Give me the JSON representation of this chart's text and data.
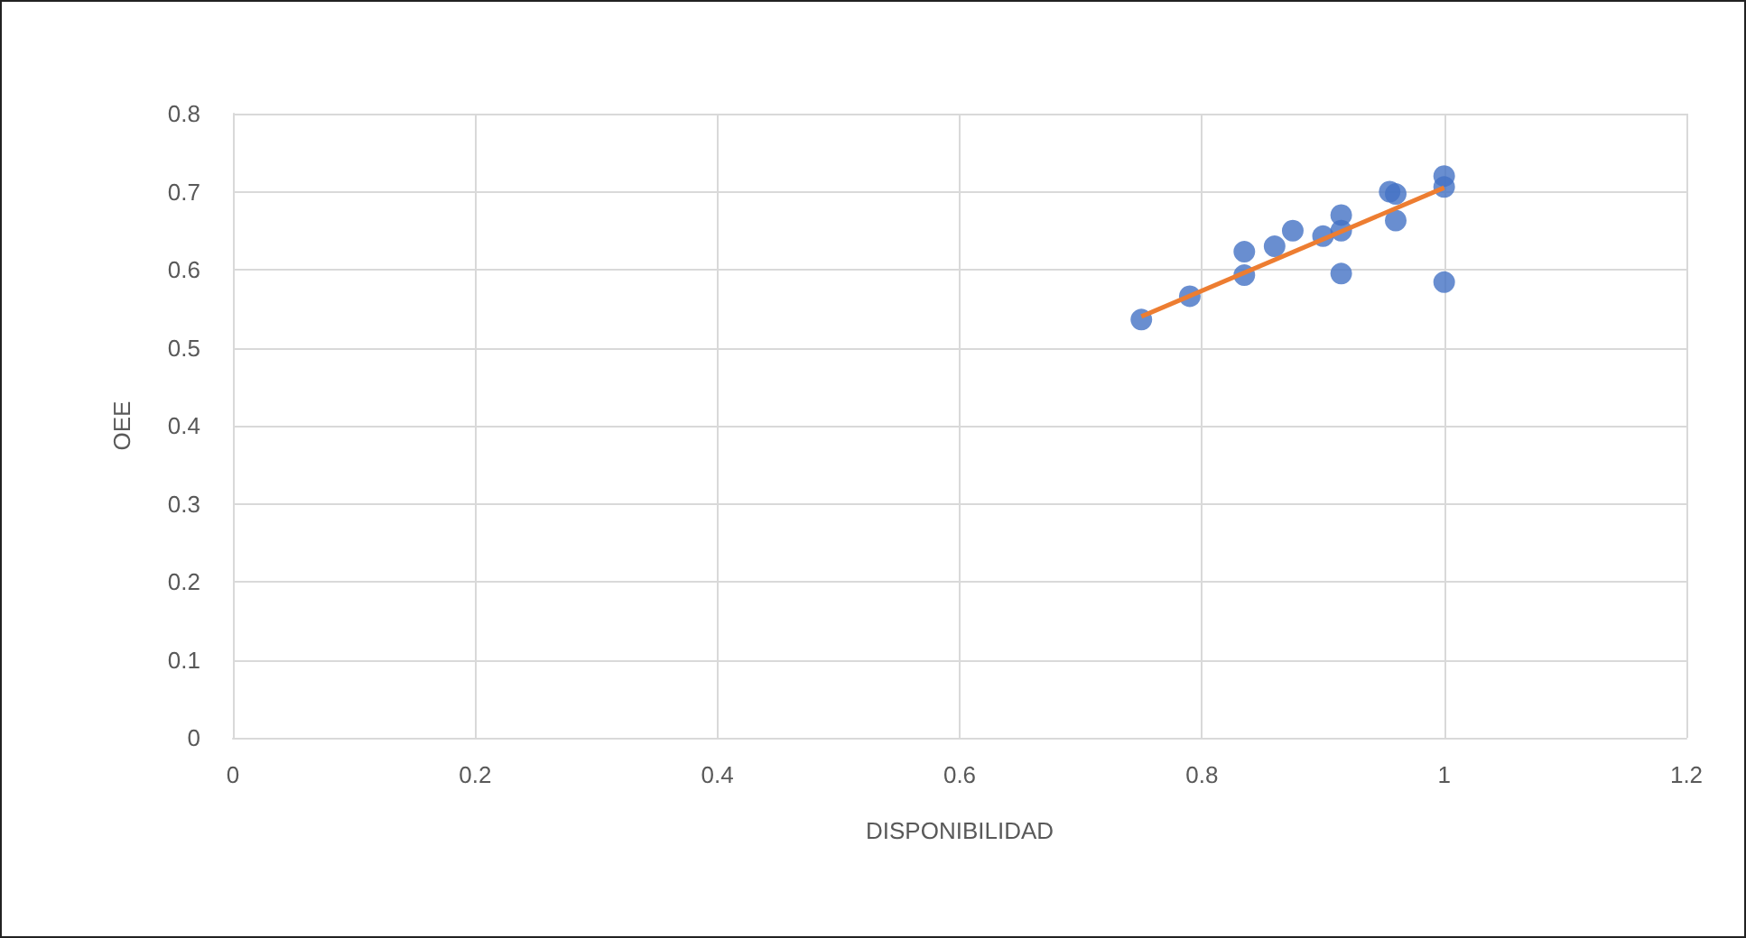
{
  "chart_data": {
    "type": "scatter",
    "xlabel": "DISPONIBILIDAD",
    "ylabel": "OEE",
    "xlim": [
      0,
      1.2
    ],
    "xticks": [
      0,
      0.2,
      0.4,
      0.6,
      0.8,
      1,
      1.2
    ],
    "ylim": [
      0,
      0.8
    ],
    "yticks": [
      0,
      0.1,
      0.2,
      0.3,
      0.4,
      0.5,
      0.6,
      0.7,
      0.8
    ],
    "grid": true,
    "marker": "circle",
    "series": [
      {
        "color": "#4472c4",
        "x": [
          0.75,
          0.79,
          0.835,
          0.835,
          0.86,
          0.875,
          0.9,
          0.915,
          0.915,
          0.915,
          0.955,
          0.96,
          0.96,
          1.0,
          1.0,
          1.0
        ],
        "values": [
          0.536,
          0.566,
          0.623,
          0.593,
          0.63,
          0.65,
          0.643,
          0.67,
          0.65,
          0.595,
          0.7,
          0.697,
          0.663,
          0.72,
          0.706,
          0.584
        ]
      },
      {
        "type": "line",
        "color": "#ed7d31",
        "marker": "none",
        "line_style": "solid",
        "x": [
          0.75,
          1.0
        ],
        "values": [
          0.54,
          0.705
        ]
      }
    ]
  }
}
